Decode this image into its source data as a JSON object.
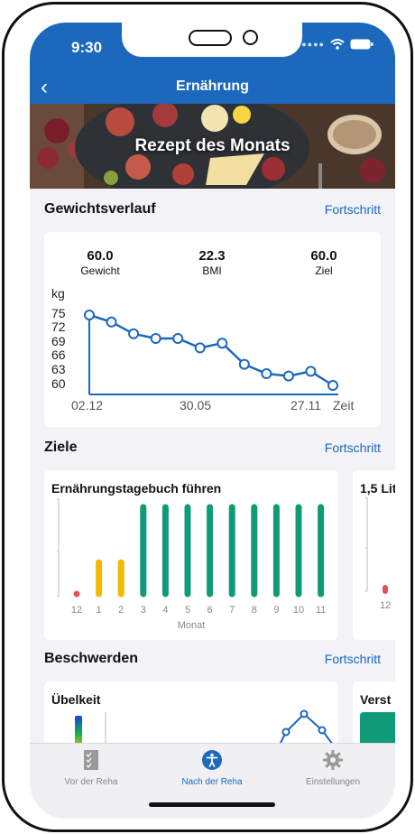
{
  "status": {
    "time": "9:30"
  },
  "nav": {
    "title": "Ernährung",
    "back_glyph": "‹"
  },
  "banner": {
    "title": "Rezept des Monats"
  },
  "weight": {
    "section_title": "Gewichtsverlauf",
    "link": "Fortschritt",
    "stats": [
      {
        "value": "60.0",
        "label": "Gewicht"
      },
      {
        "value": "22.3",
        "label": "BMI"
      },
      {
        "value": "60.0",
        "label": "Ziel"
      }
    ],
    "unit": "kg",
    "y_ticks": [
      "75",
      "72",
      "69",
      "66",
      "63",
      "60"
    ],
    "x_ticks": [
      "02.12",
      "30.05",
      "27.11"
    ],
    "x_axis_label": "Zeit"
  },
  "goals": {
    "section_title": "Ziele",
    "link": "Fortschritt",
    "card1_title": "Ernährungstagebuch führen",
    "card2_title": "1,5 Lit",
    "x_axis_label": "Monat",
    "card2_tick": "12"
  },
  "complaints": {
    "section_title": "Beschwerden",
    "link": "Fortschritt",
    "card1_title": "Übelkeit",
    "card2_title": "Verst"
  },
  "tabs": [
    {
      "label": "Vor der Reha",
      "icon": "checklist-icon"
    },
    {
      "label": "Nach der Reha",
      "icon": "accessibility-icon"
    },
    {
      "label": "Einstellungen",
      "icon": "gear-icon"
    }
  ],
  "colors": {
    "brand": "#1b68bd",
    "bar_low": "#e5505e",
    "bar_mid": "#f5b800",
    "bar_high": "#0f9a78"
  },
  "chart_data": [
    {
      "type": "line",
      "xlabel": "Zeit",
      "ylabel": "kg",
      "ylim": [
        60,
        75
      ],
      "x_ticks": [
        "02.12",
        "30.05",
        "27.11"
      ],
      "series": [
        {
          "values": [
            75,
            73.5,
            71,
            70,
            70,
            68,
            69,
            64.5,
            62.5,
            62,
            63,
            60
          ]
        }
      ]
    },
    {
      "type": "bar",
      "title": "Ernährungstagebuch führen",
      "xlabel": "Monat",
      "categories": [
        "12",
        "1",
        "2",
        "3",
        "4",
        "5",
        "6",
        "7",
        "8",
        "9",
        "10",
        "11"
      ],
      "values": [
        0.05,
        0.4,
        0.4,
        1,
        1,
        1,
        1,
        1,
        1,
        1,
        1,
        1
      ],
      "ylim": [
        0,
        1
      ]
    }
  ]
}
